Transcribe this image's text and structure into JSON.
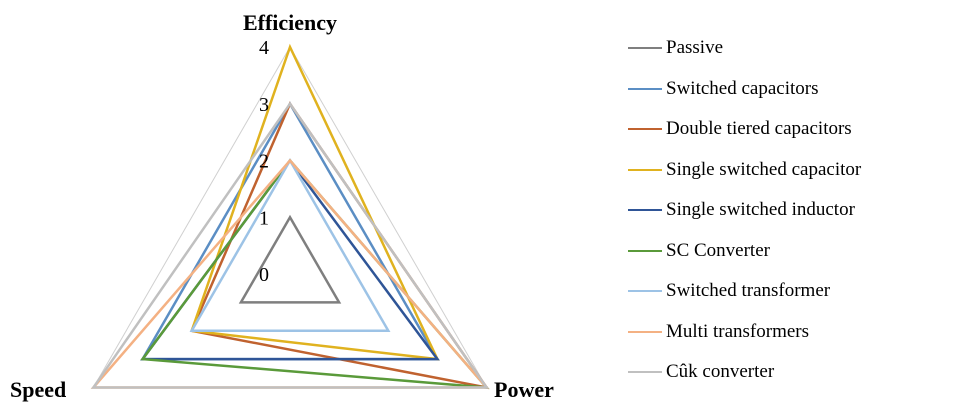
{
  "chart_data": {
    "type": "radar",
    "axes": [
      "Efficiency",
      "Power",
      "Speed"
    ],
    "range": [
      0,
      4
    ],
    "ticks": [
      "0",
      "1",
      "2",
      "3",
      "4"
    ],
    "grid": true,
    "legend_position": "right",
    "series": [
      {
        "name": "Passive",
        "color": "#7f7f7f",
        "values": [
          1,
          1,
          1
        ]
      },
      {
        "name": "Switched capacitors",
        "color": "#5b8ec4",
        "values": [
          3,
          3,
          3
        ]
      },
      {
        "name": "Double tiered capacitors",
        "color": "#c0622f",
        "values": [
          3,
          4,
          2
        ]
      },
      {
        "name": "Single switched capacitor",
        "color": "#e0b21f",
        "values": [
          4,
          3,
          2
        ]
      },
      {
        "name": "Single switched inductor",
        "color": "#2f5597",
        "values": [
          2,
          3,
          3
        ]
      },
      {
        "name": "SC Converter",
        "color": "#5a9a3a",
        "values": [
          2,
          4,
          3
        ]
      },
      {
        "name": "Switched transformer",
        "color": "#9dc3e6",
        "values": [
          2,
          2,
          2
        ]
      },
      {
        "name": "Multi transformers",
        "color": "#f4b183",
        "values": [
          2,
          4,
          4
        ]
      },
      {
        "name": "Cûk converter",
        "color": "#c0c0c0",
        "values": [
          3,
          4,
          4
        ]
      }
    ]
  }
}
